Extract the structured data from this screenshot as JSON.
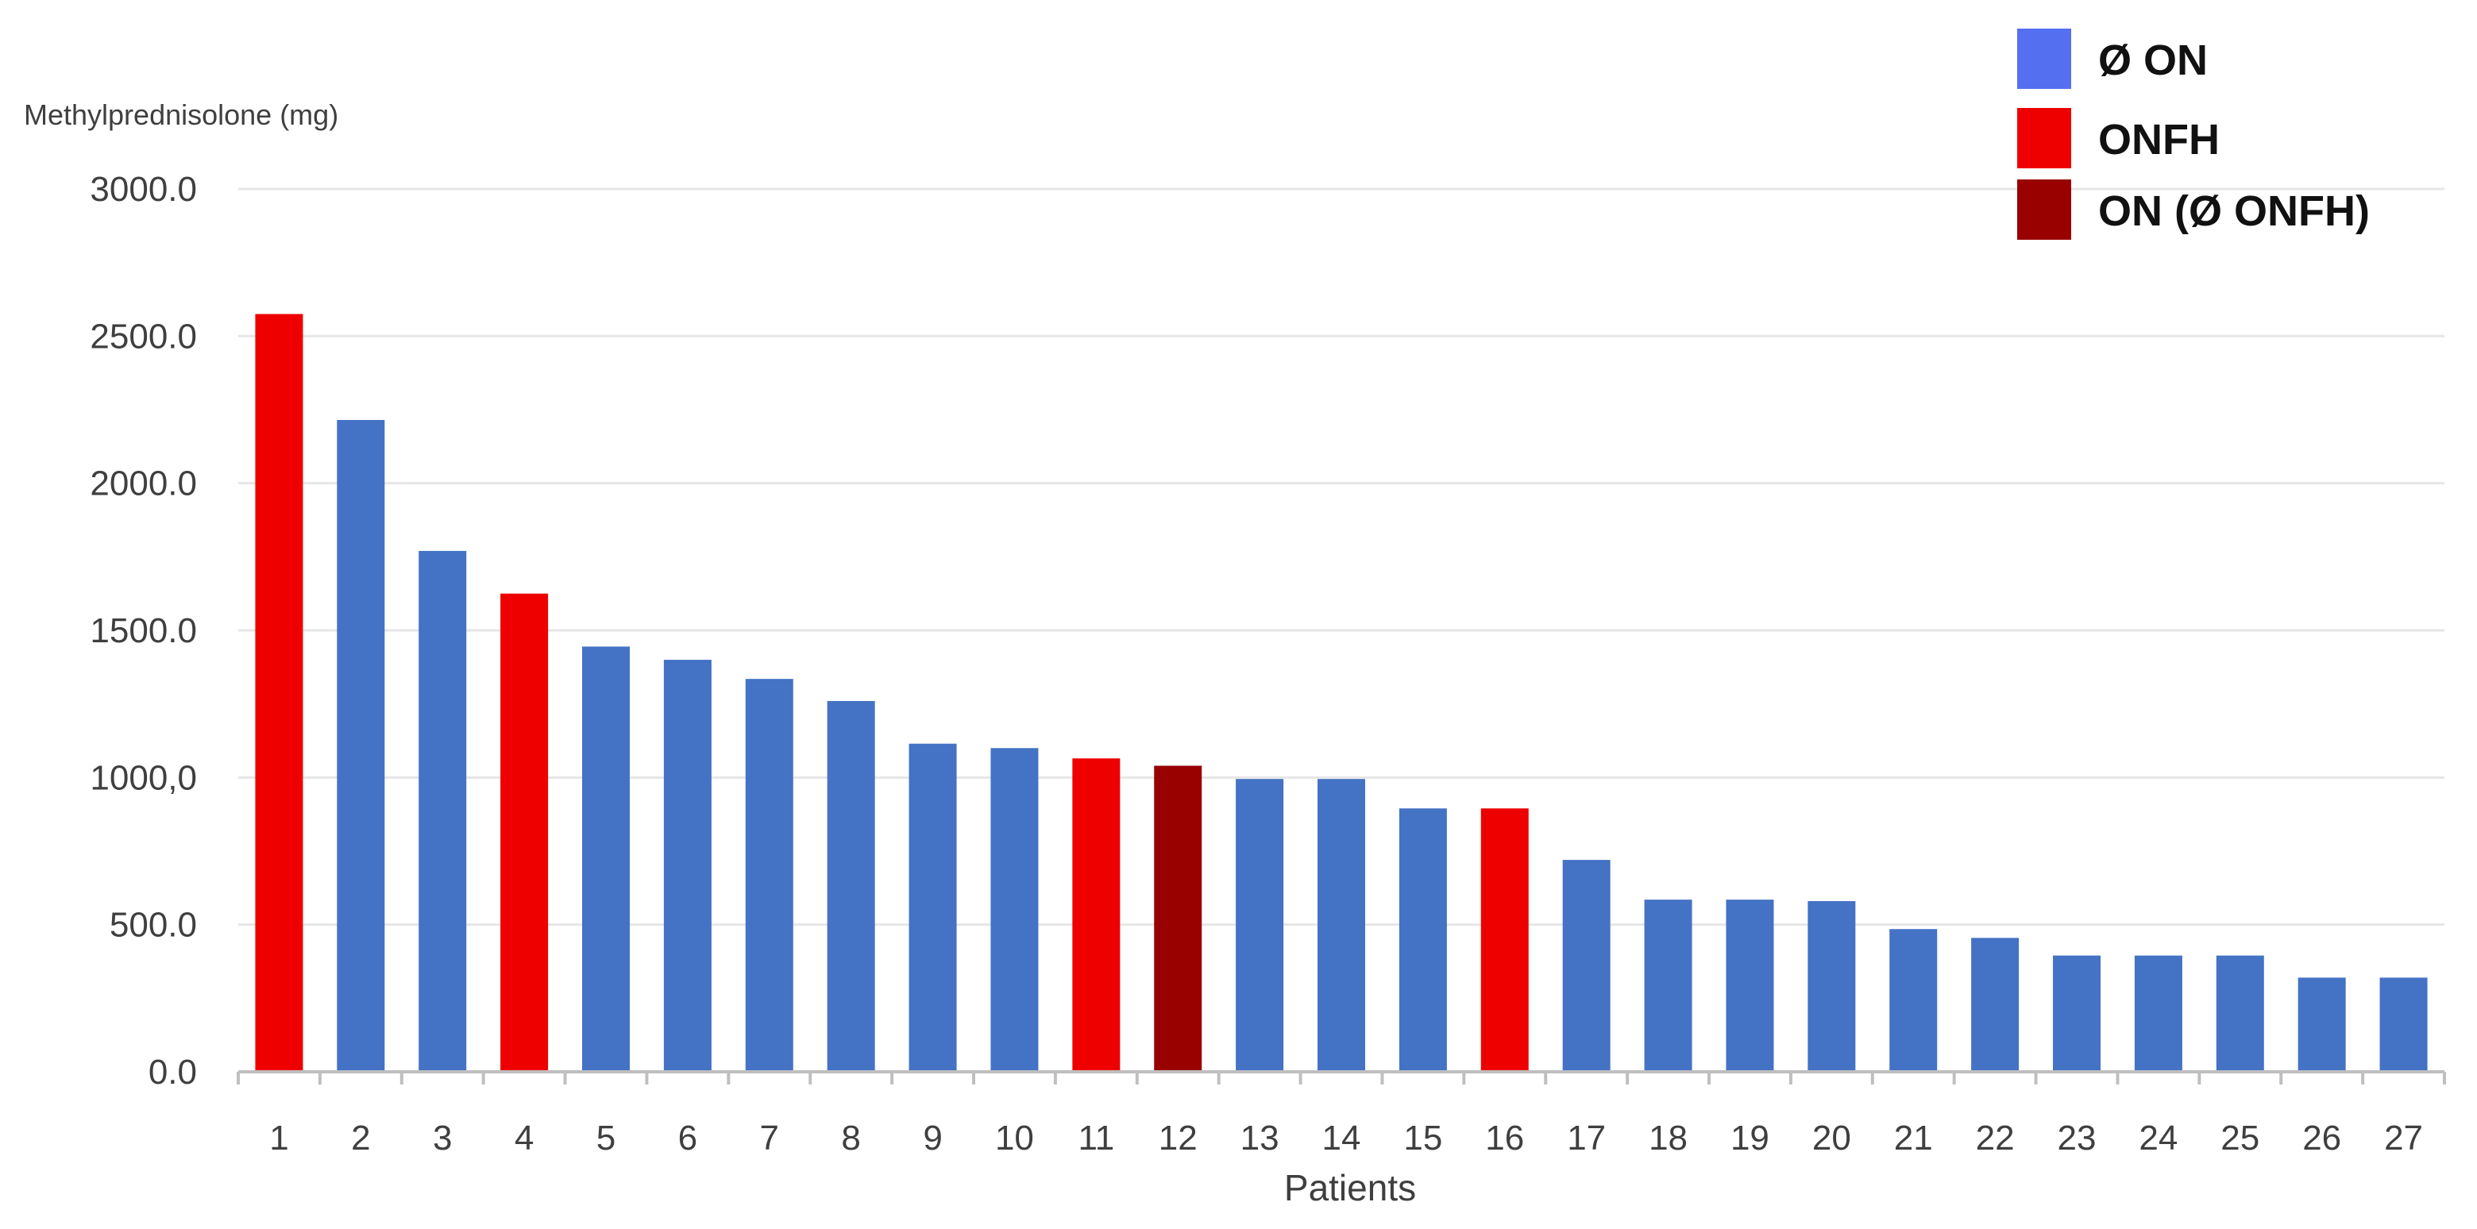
{
  "chart_data": {
    "type": "bar",
    "ylabel": "Methylprednisolone (mg)",
    "xlabel": "Patients",
    "ylim": [
      0,
      3000
    ],
    "yticks": [
      "0.0",
      "500.0",
      "1000,0",
      "1500.0",
      "2000.0",
      "2500.0",
      "3000.0"
    ],
    "grid": true,
    "legend_position": "top-right",
    "legend": [
      {
        "key": "no_on",
        "label": "Ø ON",
        "color": "#5470f0"
      },
      {
        "key": "onfh",
        "label": "ONFH",
        "color": "#ee0000"
      },
      {
        "key": "on_no_onfh",
        "label": "ON  (Ø ONFH)",
        "color": "#990000"
      }
    ],
    "colors": {
      "no_on": "#4472c4",
      "onfh": "#ee0000",
      "on_no_onfh": "#990000"
    },
    "categories": [
      "1",
      "2",
      "3",
      "4",
      "5",
      "6",
      "7",
      "8",
      "9",
      "10",
      "11",
      "12",
      "13",
      "14",
      "15",
      "16",
      "17",
      "18",
      "19",
      "20",
      "21",
      "22",
      "23",
      "24",
      "25",
      "26",
      "27"
    ],
    "values": [
      2575,
      2215,
      1770,
      1625,
      1445,
      1400,
      1335,
      1260,
      1115,
      1100,
      1065,
      1040,
      995,
      995,
      895,
      895,
      720,
      585,
      585,
      580,
      485,
      455,
      395,
      395,
      395,
      320,
      320
    ],
    "groups": [
      "onfh",
      "no_on",
      "no_on",
      "onfh",
      "no_on",
      "no_on",
      "no_on",
      "no_on",
      "no_on",
      "no_on",
      "onfh",
      "on_no_onfh",
      "no_on",
      "no_on",
      "no_on",
      "onfh",
      "no_on",
      "no_on",
      "no_on",
      "no_on",
      "no_on",
      "no_on",
      "no_on",
      "no_on",
      "no_on",
      "no_on",
      "no_on"
    ]
  }
}
